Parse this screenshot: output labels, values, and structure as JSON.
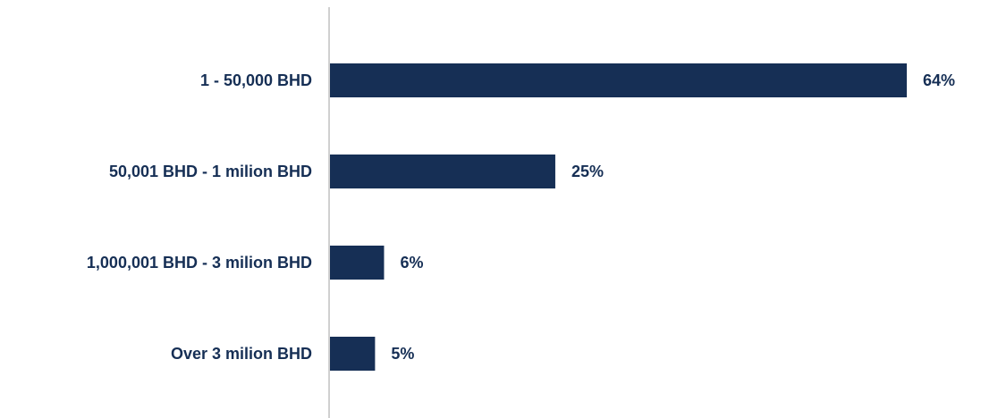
{
  "chart_data": {
    "type": "bar",
    "orientation": "horizontal",
    "categories": [
      "1 - 50,000 BHD",
      "50,001 BHD - 1 milion BHD",
      "1,000,001 BHD - 3 milion BHD",
      "Over 3 milion BHD"
    ],
    "values": [
      64,
      25,
      6,
      5
    ],
    "value_labels": [
      "64%",
      "25%",
      "6%",
      "5%"
    ],
    "unit": "%",
    "xlim": [
      0,
      64
    ],
    "grid": false,
    "legend": "none",
    "title": "",
    "xlabel": "",
    "ylabel": ""
  },
  "colors": {
    "bar": "#162f55",
    "label": "#162f55",
    "axis": "#d0d0d0"
  }
}
